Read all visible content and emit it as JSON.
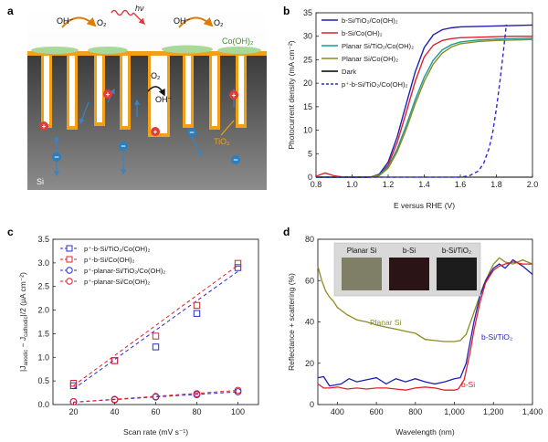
{
  "panels": {
    "a": {
      "letter": "a",
      "labels": {
        "oh_left": "OH⁻",
        "o2_left": "O₂",
        "hv": "hν",
        "oh_right": "OH⁻",
        "o2_right": "O₂",
        "cooh": "Co(OH)₂",
        "o2_mid": "O₂",
        "oh_mid": "OH⁻",
        "tio2": "TiO₂",
        "si": "Si"
      },
      "colors": {
        "si_top": "#3f3f3f",
        "si_bottom": "#8a8a8a",
        "tio2": "#f2a019",
        "cooh": "#a8d99a",
        "hole": "#e23b3b",
        "electron": "#2a7fc0",
        "arrow": "#3b82c4"
      }
    },
    "b": {
      "letter": "b",
      "chart_data": {
        "type": "line",
        "xlabel": "E versus RHE (V)",
        "ylabel": "Photocurrent density (mA cm⁻²)",
        "xlim": [
          0.8,
          2.0
        ],
        "ylim": [
          0,
          35
        ],
        "xticks": [
          0.8,
          1.0,
          1.2,
          1.4,
          1.6,
          1.8,
          2.0
        ],
        "yticks": [
          0,
          5,
          10,
          15,
          20,
          25,
          30,
          35
        ],
        "legend_position": "top-left",
        "series": [
          {
            "name": "b-Si/TiO₂/Co(OH)₂",
            "color": "#1f1fb4",
            "dash": false,
            "x": [
              0.8,
              0.9,
              1.0,
              1.1,
              1.15,
              1.2,
              1.25,
              1.3,
              1.35,
              1.4,
              1.45,
              1.5,
              1.55,
              1.6,
              1.7,
              1.8,
              1.9,
              2.0
            ],
            "y": [
              0,
              0,
              0,
              0,
              0.6,
              3.2,
              8.6,
              15.6,
              22.4,
              27.6,
              30.3,
              31.4,
              31.8,
              32.0,
              32.1,
              32.2,
              32.3,
              32.4
            ]
          },
          {
            "name": "b-Si/Co(OH)₂",
            "color": "#e0202b",
            "dash": false,
            "x": [
              0.8,
              0.85,
              0.9,
              0.95,
              1.0,
              1.1,
              1.15,
              1.2,
              1.25,
              1.3,
              1.35,
              1.4,
              1.45,
              1.5,
              1.55,
              1.6,
              1.7,
              1.8,
              1.9,
              2.0
            ],
            "y": [
              0.2,
              0.9,
              0.3,
              0,
              0,
              0,
              0.4,
              2.6,
              7.4,
              13.8,
              20.4,
              25.6,
              28.1,
              29.1,
              29.5,
              29.7,
              29.8,
              29.9,
              30.0,
              30.0
            ]
          },
          {
            "name": "Planar Si/TiO₂/Co(OH)₂",
            "color": "#1a9a9a",
            "dash": false,
            "x": [
              0.8,
              0.9,
              1.0,
              1.1,
              1.15,
              1.2,
              1.25,
              1.3,
              1.35,
              1.4,
              1.45,
              1.5,
              1.55,
              1.6,
              1.7,
              1.8,
              1.9,
              2.0
            ],
            "y": [
              0,
              0,
              0,
              0,
              0.4,
              2.2,
              6.0,
              11.0,
              16.5,
              21.3,
              24.9,
              27.1,
              28.2,
              28.8,
              29.2,
              29.4,
              29.5,
              29.6
            ]
          },
          {
            "name": "Planar Si/Co(OH)₂",
            "color": "#8c8c1e",
            "dash": false,
            "x": [
              0.8,
              0.9,
              1.0,
              1.1,
              1.15,
              1.2,
              1.25,
              1.3,
              1.35,
              1.4,
              1.45,
              1.5,
              1.55,
              1.6,
              1.7,
              1.8,
              1.9,
              2.0
            ],
            "y": [
              0,
              0,
              0,
              0,
              0.3,
              1.9,
              5.4,
              10.2,
              15.6,
              20.4,
              24.1,
              26.4,
              27.7,
              28.4,
              28.9,
              29.1,
              29.2,
              29.3
            ]
          },
          {
            "name": "Dark",
            "color": "#000000",
            "dash": false,
            "x": [
              0.8,
              2.0
            ],
            "y": [
              0,
              0
            ]
          },
          {
            "name": "p⁺-b-Si/TiO₂/Co(OH)₂",
            "color": "#2a2ad0",
            "dash": true,
            "x": [
              0.8,
              1.6,
              1.65,
              1.7,
              1.73,
              1.76,
              1.78,
              1.8,
              1.82,
              1.84,
              1.855
            ],
            "y": [
              0,
              0,
              0.3,
              1.3,
              3.0,
              6.2,
              9.6,
              14.6,
              20.6,
              27.2,
              32.5
            ]
          }
        ]
      }
    },
    "c": {
      "letter": "c",
      "chart_data": {
        "type": "scatter",
        "xlabel": "Scan rate (mV s⁻¹)",
        "ylabel": "|J_anodic − J_cathodic|/2 (μA cm⁻²)",
        "ylabel_parts": {
          "open": "|J",
          "sub1": "anodic",
          "mid": " − J",
          "sub2": "cathodic",
          "close": "|/2 (μA cm⁻²)"
        },
        "xlim": [
          10,
          110
        ],
        "ylim": [
          0,
          3.5
        ],
        "xticks": [
          20,
          40,
          60,
          80,
          100
        ],
        "yticks": [
          0,
          0.5,
          1.0,
          1.5,
          2.0,
          2.5,
          3.0,
          3.5
        ],
        "ytick_labels": [
          "0.0",
          "0.5",
          "1.0",
          "1.5",
          "2.0",
          "2.5",
          "3.0",
          "3.5"
        ],
        "legend_position": "top-left",
        "series": [
          {
            "name": "p⁺-b-Si/TiO₂/Co(OH)₂",
            "color": "#2a2ad0",
            "marker": "square",
            "x": [
              20,
              40,
              60,
              80,
              100
            ],
            "y": [
              0.4,
              0.93,
              1.22,
              1.93,
              2.9
            ],
            "fit": [
              0.33,
              2.82
            ]
          },
          {
            "name": "p⁺-b-Si/Co(OH)₂",
            "color": "#e0202b",
            "marker": "square",
            "x": [
              20,
              40,
              60,
              80,
              100
            ],
            "y": [
              0.45,
              0.93,
              1.45,
              2.1,
              2.99
            ],
            "fit": [
              0.4,
              2.95
            ]
          },
          {
            "name": "p⁺-planar-Si/TiO₂/Co(OH)₂",
            "color": "#2a2ad0",
            "marker": "circle",
            "x": [
              20,
              40,
              60,
              80,
              100
            ],
            "y": [
              0.06,
              0.1,
              0.16,
              0.21,
              0.27
            ],
            "fit": [
              0.05,
              0.27
            ]
          },
          {
            "name": "p⁺-planar-Si/Co(OH)₂",
            "color": "#e0202b",
            "marker": "circle",
            "x": [
              20,
              40,
              60,
              80,
              100
            ],
            "y": [
              0.06,
              0.11,
              0.17,
              0.23,
              0.3
            ],
            "fit": [
              0.05,
              0.3
            ]
          }
        ]
      }
    },
    "d": {
      "letter": "d",
      "inset_labels": [
        "Planar Si",
        "b-Si",
        "b-Si/TiO₂"
      ],
      "annotations": {
        "planar": "Planar Si",
        "bsi_tio2": "b-Si/TiO₂",
        "bsi": "b-Si"
      },
      "chart_data": {
        "type": "line",
        "xlabel": "Wavelength (nm)",
        "ylabel": "Reflectance + scattering (%)",
        "xlim": [
          300,
          1400
        ],
        "ylim": [
          0,
          80
        ],
        "xticks": [
          400,
          600,
          800,
          1000,
          1200,
          1400
        ],
        "xtick_labels": [
          "400",
          "600",
          "800",
          "1,000",
          "1,200",
          "1,400"
        ],
        "yticks": [
          0,
          20,
          40,
          60,
          80
        ],
        "series": [
          {
            "name": "Planar Si",
            "color": "#8c8c1e",
            "x": [
              300,
              320,
              340,
              360,
              380,
              400,
              450,
              500,
              550,
              600,
              650,
              700,
              750,
              800,
              850,
              900,
              950,
              1000,
              1030,
              1060,
              1090,
              1120,
              1150,
              1180,
              1200,
              1230,
              1260,
              1300,
              1350,
              1400
            ],
            "y": [
              67,
              60,
              55,
              52,
              50,
              47,
              43.5,
              41,
              40,
              38.5,
              37.5,
              36.5,
              35.5,
              34.5,
              31.5,
              31,
              30.5,
              30.5,
              31,
              34,
              42,
              50,
              58,
              64,
              68,
              71,
              69,
              68,
              70,
              68
            ]
          },
          {
            "name": "b-Si/TiO₂",
            "color": "#1f1fb4",
            "x": [
              300,
              330,
              360,
              390,
              420,
              460,
              500,
              550,
              600,
              650,
              700,
              750,
              800,
              850,
              900,
              950,
              1000,
              1030,
              1060,
              1080,
              1100,
              1130,
              1160,
              1200,
              1230,
              1260,
              1300,
              1350,
              1400
            ],
            "y": [
              13,
              13.5,
              9,
              9.5,
              10,
              12.5,
              11,
              12,
              13,
              10,
              12.5,
              11,
              12.5,
              11,
              10,
              11,
              12.5,
              13,
              20,
              30,
              40,
              52,
              60,
              66,
              68,
              66,
              70,
              67,
              63
            ]
          },
          {
            "name": "b-Si",
            "color": "#e0202b",
            "x": [
              300,
              330,
              360,
              400,
              450,
              500,
              550,
              600,
              650,
              700,
              750,
              800,
              850,
              900,
              950,
              1000,
              1020,
              1050,
              1080,
              1100,
              1130,
              1160,
              1200,
              1230,
              1260,
              1300,
              1350,
              1400
            ],
            "y": [
              10,
              8,
              8,
              8.5,
              7.5,
              8,
              7.5,
              8,
              8,
              7.5,
              7,
              8,
              8.5,
              8,
              7,
              7,
              7.5,
              12,
              25,
              36,
              49,
              59,
              65,
              67,
              68,
              69,
              68,
              68
            ]
          }
        ]
      }
    }
  }
}
